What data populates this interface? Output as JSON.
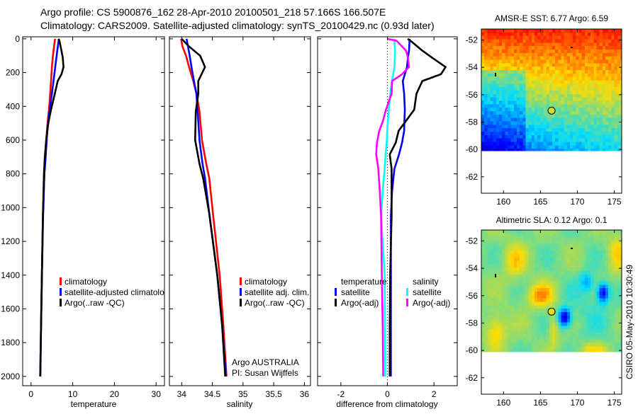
{
  "header": {
    "line1": "Argo profile: CS 5900876_162 28-Apr-2010 20100501_218 57.166S 166.507E",
    "line2": "Climatology: CARS2009. Satellite-adjusted climatology: synTS_20100429.nc (0.93d later)"
  },
  "legends": {
    "temperature": [
      "climatology",
      "satellite-adjusted climatology",
      "Argo(..raw -QC)"
    ],
    "salinity": [
      "climatology",
      "satellite adj. clim.",
      "Argo(..raw -QC)"
    ],
    "difference": {
      "temp_header": "temperature",
      "sal_header": "salinity",
      "temp_items": [
        "satellite",
        "Argo(-adj)"
      ],
      "sal_items": [
        "satellite",
        "Argo(-adj)"
      ]
    }
  },
  "annotation": {
    "line1": "Argo AUSTRALIA",
    "line2": "PI: Susan Wijffels"
  },
  "footer_stamp": "CSIRO 05-May-2010 10:30:49",
  "colors": {
    "climatology": "#ff0000",
    "satellite": "#0000ff",
    "argo": "#000000",
    "sal_satellite": "#00ffff",
    "sal_argo": "#ff00ff"
  },
  "chart_data": [
    {
      "type": "line",
      "title": "",
      "xlabel": "temperature",
      "ylabel": "",
      "xlim": [
        -2,
        32
      ],
      "ylim": [
        2055,
        -12
      ],
      "xticks": [
        0,
        10,
        20,
        30
      ],
      "yticks": [
        0,
        200,
        400,
        600,
        800,
        1000,
        1200,
        1400,
        1600,
        1800,
        2000
      ],
      "depth": [
        0,
        12,
        70,
        110,
        167,
        210,
        250,
        325,
        420,
        490,
        585,
        700,
        800,
        1050,
        1400,
        1700,
        2000
      ],
      "series": [
        {
          "name": "climatology",
          "color": "#ff0000",
          "values": [
            5.8,
            5.7,
            5.4,
            5.2,
            5.0,
            4.9,
            4.8,
            4.6,
            4.3,
            4.0,
            3.7,
            3.4,
            3.2,
            2.85,
            2.6,
            2.4,
            2.2
          ]
        },
        {
          "name": "satellite-adjusted climatology",
          "color": "#0000ff",
          "values": [
            6.7,
            6.6,
            6.3,
            6.1,
            5.8,
            5.6,
            5.4,
            5.0,
            4.5,
            4.1,
            3.8,
            3.5,
            3.2,
            2.9,
            2.6,
            2.4,
            2.25
          ]
        },
        {
          "name": "Argo(..raw -QC)",
          "color": "#000000",
          "values": [
            6.6,
            6.8,
            7.3,
            7.6,
            7.8,
            7.3,
            6.4,
            5.7,
            4.8,
            4.2,
            3.7,
            3.3,
            3.1,
            2.85,
            2.6,
            2.4,
            2.2
          ]
        }
      ]
    },
    {
      "type": "line",
      "xlabel": "salinity",
      "xlim": [
        33.8,
        36.1
      ],
      "ylim": [
        2055,
        -12
      ],
      "xticks": [
        34,
        34.5,
        35,
        35.5,
        36
      ],
      "depth": [
        0,
        42,
        100,
        167,
        250,
        325,
        430,
        600,
        740,
        826,
        1035,
        1400,
        1700,
        2000
      ],
      "series": [
        {
          "name": "climatology",
          "color": "#ff0000",
          "values": [
            33.99,
            34.01,
            34.07,
            34.12,
            34.19,
            34.24,
            34.29,
            34.33,
            34.4,
            34.45,
            34.51,
            34.62,
            34.68,
            34.73
          ]
        },
        {
          "name": "satellite adj. clim.",
          "color": "#0000ff",
          "values": [
            34.08,
            34.1,
            34.13,
            34.16,
            34.2,
            34.24,
            34.26,
            34.29,
            34.34,
            34.38,
            34.45,
            34.58,
            34.66,
            34.72
          ]
        },
        {
          "name": "Argo(..raw -QC)",
          "color": "#000000",
          "values": [
            34.0,
            34.11,
            34.3,
            34.38,
            34.27,
            34.27,
            34.23,
            34.22,
            34.29,
            34.35,
            34.45,
            34.58,
            34.66,
            34.71
          ]
        }
      ]
    },
    {
      "type": "line",
      "xlabel": "difference from climatology",
      "xlim": [
        -3,
        3
      ],
      "ylim": [
        2055,
        -12
      ],
      "xticks": [
        -2,
        0,
        2
      ],
      "zero_line": true,
      "depth": [
        0,
        12,
        70,
        110,
        167,
        210,
        250,
        325,
        420,
        490,
        545,
        615,
        685,
        770,
        900,
        1050,
        1400,
        1700,
        2000
      ],
      "series": [
        {
          "name": "temperature satellite",
          "color": "#0000ff",
          "values": [
            0.95,
            0.95,
            0.93,
            0.88,
            0.84,
            0.75,
            0.66,
            0.72,
            0.75,
            0.73,
            0.72,
            0.63,
            0.5,
            0.3,
            0.2,
            0.15,
            0.15,
            0.15,
            0.15
          ]
        },
        {
          "name": "temperature Argo(-adj)",
          "color": "#000000",
          "values": [
            0.87,
            1.0,
            1.5,
            1.9,
            2.5,
            2.3,
            1.5,
            1.25,
            1.15,
            0.78,
            0.48,
            0.36,
            0.1,
            0.18,
            0.18,
            0.18,
            0.12,
            0.1,
            0.1
          ]
        },
        {
          "name": "salinity satellite",
          "color": "#00ffff",
          "values": [
            0.3,
            0.3,
            0.33,
            0.32,
            0.3,
            0.25,
            0.2,
            0.12,
            0.06,
            0.02,
            -0.01,
            -0.03,
            -0.08,
            -0.12,
            -0.2,
            -0.27,
            -0.12,
            -0.1,
            -0.09
          ]
        },
        {
          "name": "salinity Argo(-adj)",
          "color": "#ff00ff",
          "values": [
            0.0,
            0.4,
            0.8,
            0.88,
            0.93,
            0.63,
            0.2,
            0.18,
            -0.06,
            -0.2,
            -0.35,
            -0.45,
            -0.48,
            -0.39,
            -0.33,
            -0.27,
            -0.24,
            -0.2,
            -0.18
          ]
        }
      ]
    },
    {
      "type": "heatmap",
      "title": "AMSR-E SST: 6.77 Argo: 6.59",
      "xlim": [
        157,
        176
      ],
      "ylim": [
        -63.2,
        -51.2
      ],
      "data_lat_min": -60.1,
      "xticks": [
        160,
        165,
        170,
        175
      ],
      "yticks": [
        -52,
        -54,
        -56,
        -58,
        -60,
        -62
      ],
      "argo_position": [
        166.507,
        -57.166
      ]
    },
    {
      "type": "heatmap",
      "title": "Altimetric SLA: 0.12 Argo: 0.1",
      "xlim": [
        157,
        176
      ],
      "ylim": [
        -63.2,
        -51.2
      ],
      "data_lat_min": -60.1,
      "xticks": [
        160,
        165,
        170,
        175
      ],
      "yticks": [
        -52,
        -54,
        -56,
        -58,
        -60,
        -62
      ],
      "argo_position": [
        166.507,
        -57.166
      ]
    }
  ]
}
